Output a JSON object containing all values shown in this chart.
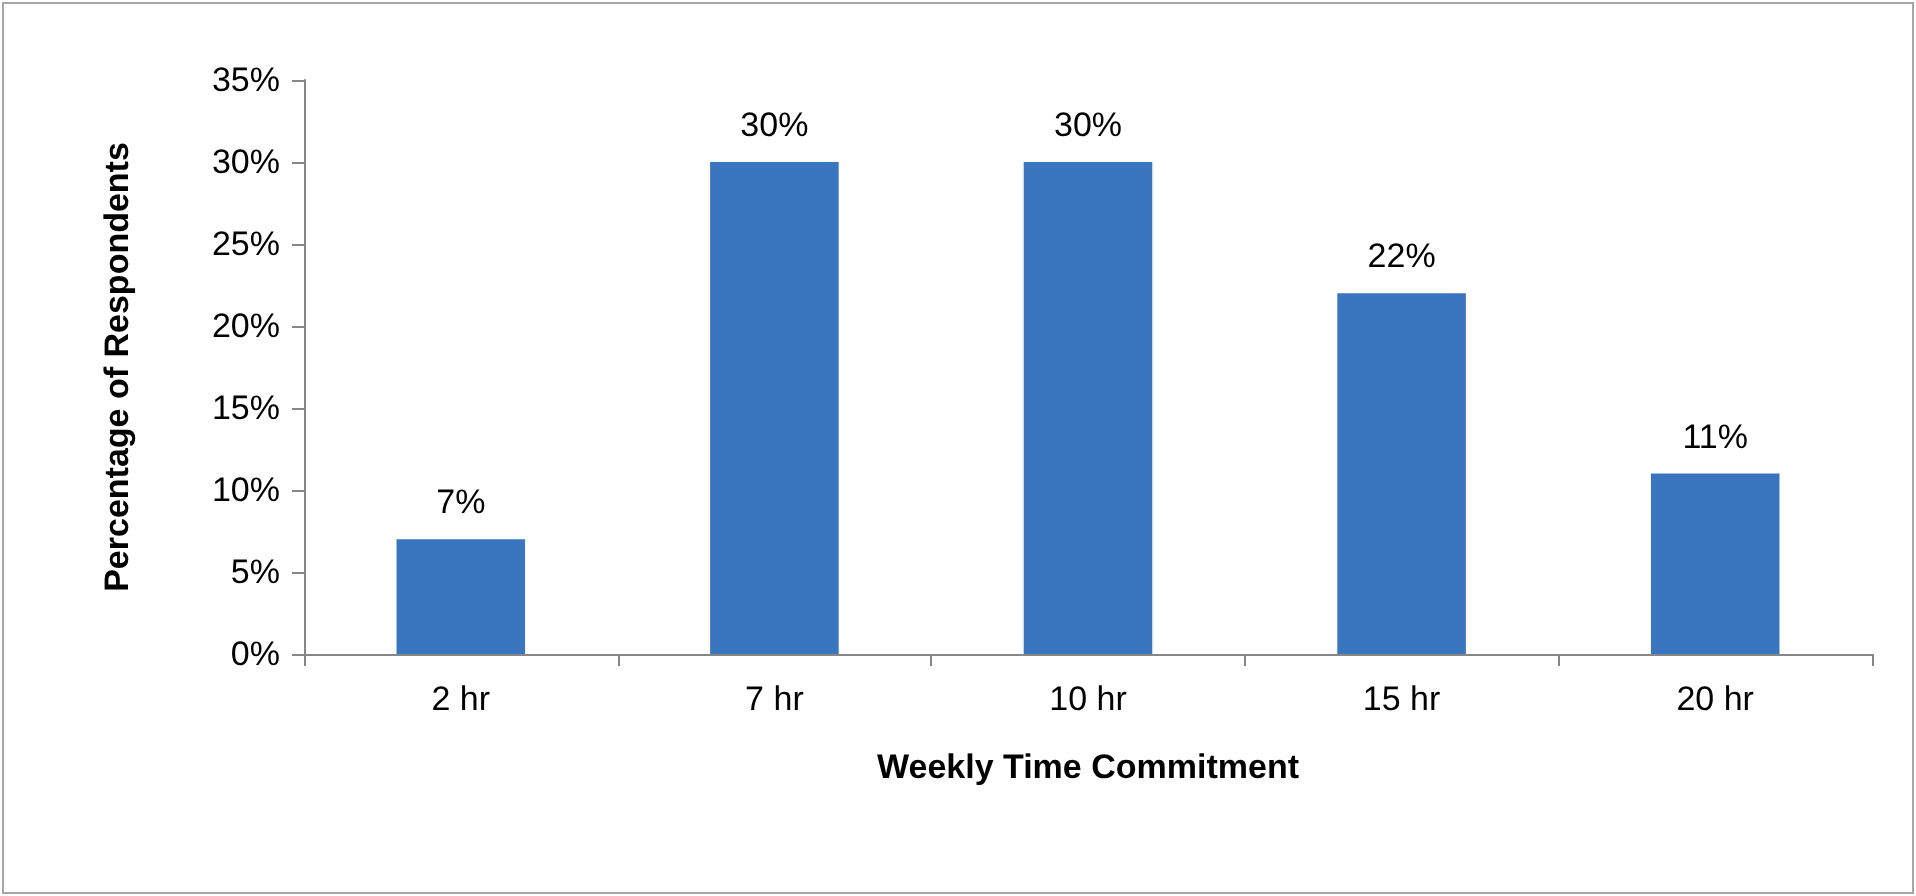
{
  "chart_data": {
    "type": "bar",
    "xlabel": "Weekly Time Commitment",
    "ylabel": "Percentage of Respondents",
    "categories": [
      "2 hr",
      "7 hr",
      "10 hr",
      "15 hr",
      "20 hr"
    ],
    "values": [
      7,
      30,
      30,
      22,
      11
    ],
    "value_labels": [
      "7%",
      "30%",
      "30%",
      "22%",
      "11%"
    ],
    "color": "#3a76c0",
    "ylim": [
      0,
      35
    ],
    "yticks": [
      {
        "value": 0,
        "label": "0%"
      },
      {
        "value": 5,
        "label": "5%"
      },
      {
        "value": 10,
        "label": "10%"
      },
      {
        "value": 15,
        "label": "15%"
      },
      {
        "value": 20,
        "label": "20%"
      },
      {
        "value": 25,
        "label": "25%"
      },
      {
        "value": 30,
        "label": "30%"
      },
      {
        "value": 35,
        "label": "35%"
      }
    ],
    "grid": false
  }
}
